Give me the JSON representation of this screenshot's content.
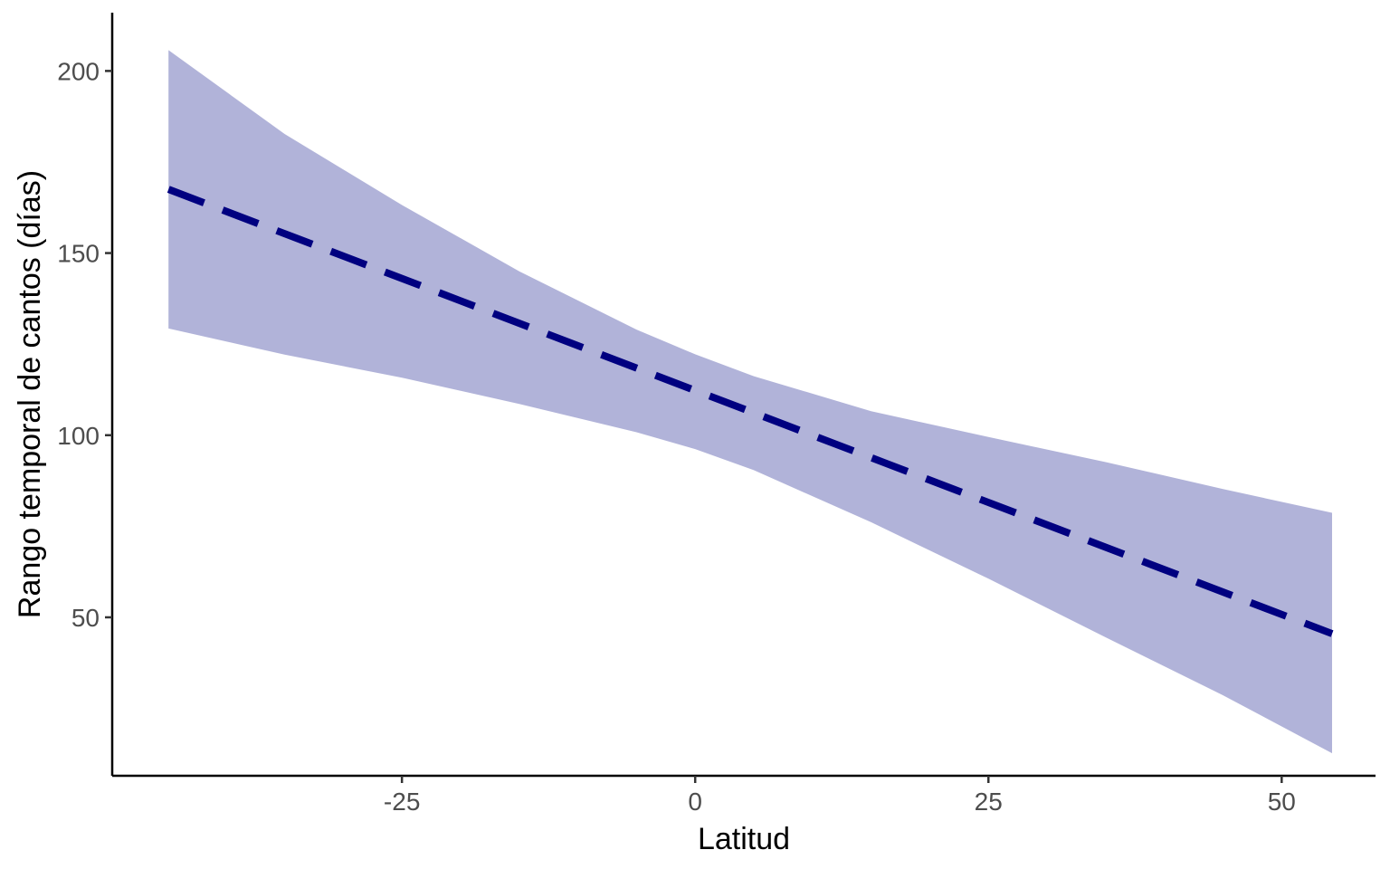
{
  "chart_data": {
    "type": "line",
    "title": "",
    "xlabel": "Latitud",
    "ylabel": "Rango temporal de cantos (días)",
    "xlim": [
      -49.7,
      58.0
    ],
    "ylim": [
      6.5,
      216.0
    ],
    "xticks": [
      -25,
      0,
      25,
      50
    ],
    "yticks": [
      50,
      100,
      150,
      200
    ],
    "grid": false,
    "series": [
      {
        "name": "fit",
        "style": "dashed",
        "color": "#000080",
        "x": [
          -44.9,
          54.3
        ],
        "y": [
          167.5,
          45.5
        ]
      }
    ],
    "ribbon": {
      "color": "#b1b3d9",
      "x": [
        -44.9,
        -35,
        -25,
        -15,
        -5,
        0,
        5,
        15,
        25,
        35,
        45,
        54.3
      ],
      "upper": [
        205.7,
        182.7,
        163.2,
        145.0,
        129.0,
        122.2,
        116.2,
        106.6,
        99.5,
        92.6,
        85.2,
        78.7
      ],
      "lower": [
        129.3,
        122.1,
        115.8,
        108.6,
        100.8,
        96.2,
        90.4,
        76.1,
        60.6,
        44.5,
        28.6,
        12.7
      ]
    }
  }
}
